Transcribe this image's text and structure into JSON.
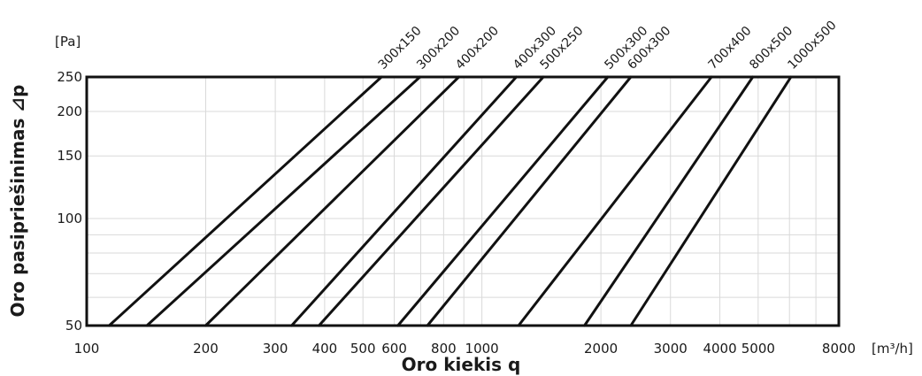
{
  "chart_data": {
    "type": "line",
    "title": "",
    "xlabel": "Oro kiekis q",
    "ylabel": "Oro pasipriešinimas ⊿p",
    "x_unit": "[m³/h]",
    "y_unit": "[Pa]",
    "xscale": "log",
    "yscale": "log",
    "xlim": [
      100,
      8000
    ],
    "ylim": [
      50,
      250
    ],
    "x_ticks": [
      100,
      200,
      300,
      400,
      500,
      600,
      800,
      1000,
      2000,
      3000,
      4000,
      5000,
      8000
    ],
    "x_tick_labels": [
      "100",
      "200",
      "300",
      "400",
      "500",
      "600",
      "800",
      "1000",
      "2000",
      "3000",
      "4000",
      "5000",
      "8000"
    ],
    "y_ticks": [
      50,
      100,
      150,
      200,
      250
    ],
    "y_tick_labels": [
      "50",
      "100",
      "150",
      "200",
      "250"
    ],
    "x_grid": [
      100,
      200,
      300,
      400,
      500,
      600,
      700,
      800,
      900,
      1000,
      2000,
      3000,
      4000,
      5000,
      6000,
      7000,
      8000
    ],
    "y_grid": [
      50,
      60,
      70,
      80,
      90,
      100,
      150,
      200,
      250
    ],
    "grid": true,
    "legend": "labels at top of each line",
    "series": [
      {
        "name": "300x150",
        "x": [
          114,
          557
        ],
        "y": [
          50,
          250
        ]
      },
      {
        "name": "300x200",
        "x": [
          142,
          697
        ],
        "y": [
          50,
          250
        ]
      },
      {
        "name": "400x200",
        "x": [
          200,
          874
        ],
        "y": [
          50,
          250
        ]
      },
      {
        "name": "400x300",
        "x": [
          330,
          1222
        ],
        "y": [
          50,
          250
        ]
      },
      {
        "name": "500x250",
        "x": [
          387,
          1430
        ],
        "y": [
          50,
          250
        ]
      },
      {
        "name": "500x300",
        "x": [
          613,
          2082
        ],
        "y": [
          50,
          250
        ]
      },
      {
        "name": "600x300",
        "x": [
          728,
          2381
        ],
        "y": [
          50,
          250
        ]
      },
      {
        "name": "700x400",
        "x": [
          1238,
          3809
        ],
        "y": [
          50,
          250
        ]
      },
      {
        "name": "800x500",
        "x": [
          1818,
          4846
        ],
        "y": [
          50,
          250
        ]
      },
      {
        "name": "1000x500",
        "x": [
          2381,
          6053
        ],
        "y": [
          50,
          250
        ]
      }
    ]
  }
}
